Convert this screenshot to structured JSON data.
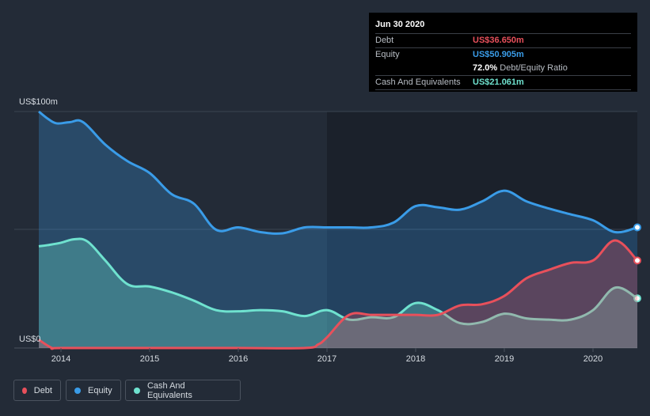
{
  "chart_data": {
    "type": "area",
    "y_axis": {
      "unit_label_top": "US$100m",
      "unit_label_bottom": "US$0",
      "ylim": [
        0,
        100
      ]
    },
    "x_ticks": [
      "2014",
      "2015",
      "2016",
      "2017",
      "2018",
      "2019",
      "2020"
    ],
    "xlim": [
      2013.75,
      2020.5
    ],
    "series": [
      {
        "name": "Equity",
        "color": "#3a9ce8",
        "points": [
          [
            2013.75,
            100
          ],
          [
            2013.85,
            97
          ],
          [
            2013.95,
            95
          ],
          [
            2014.1,
            95.5
          ],
          [
            2014.25,
            95.5
          ],
          [
            2014.5,
            86
          ],
          [
            2014.75,
            79
          ],
          [
            2015.0,
            74
          ],
          [
            2015.25,
            65
          ],
          [
            2015.5,
            61
          ],
          [
            2015.75,
            50
          ],
          [
            2016.0,
            51
          ],
          [
            2016.25,
            49
          ],
          [
            2016.5,
            48.5
          ],
          [
            2016.75,
            51
          ],
          [
            2017.0,
            51
          ],
          [
            2017.25,
            51
          ],
          [
            2017.5,
            51
          ],
          [
            2017.75,
            53
          ],
          [
            2018.0,
            60
          ],
          [
            2018.25,
            59.5
          ],
          [
            2018.5,
            58.5
          ],
          [
            2018.75,
            62
          ],
          [
            2019.0,
            66.5
          ],
          [
            2019.25,
            62
          ],
          [
            2019.5,
            59
          ],
          [
            2019.75,
            56.5
          ],
          [
            2020.0,
            54
          ],
          [
            2020.25,
            49
          ],
          [
            2020.5,
            51
          ]
        ]
      },
      {
        "name": "Cash And Equivalents",
        "color": "#6fe2cf",
        "points": [
          [
            2013.75,
            43
          ],
          [
            2013.85,
            43.5
          ],
          [
            2014.0,
            44.5
          ],
          [
            2014.15,
            46
          ],
          [
            2014.3,
            45
          ],
          [
            2014.5,
            37
          ],
          [
            2014.75,
            27
          ],
          [
            2015.0,
            26
          ],
          [
            2015.25,
            23.5
          ],
          [
            2015.5,
            20
          ],
          [
            2015.75,
            16
          ],
          [
            2016.0,
            15.5
          ],
          [
            2016.25,
            16
          ],
          [
            2016.5,
            15.5
          ],
          [
            2016.75,
            13.5
          ],
          [
            2017.0,
            16
          ],
          [
            2017.25,
            12
          ],
          [
            2017.5,
            13
          ],
          [
            2017.75,
            13
          ],
          [
            2018.0,
            19
          ],
          [
            2018.25,
            16
          ],
          [
            2018.5,
            10.5
          ],
          [
            2018.75,
            11
          ],
          [
            2019.0,
            14.5
          ],
          [
            2019.25,
            12.5
          ],
          [
            2019.5,
            12
          ],
          [
            2019.75,
            12
          ],
          [
            2020.0,
            16
          ],
          [
            2020.25,
            25.5
          ],
          [
            2020.5,
            21
          ]
        ]
      },
      {
        "name": "Debt",
        "color": "#e8505b",
        "points": [
          [
            2013.75,
            3.5
          ],
          [
            2013.9,
            0
          ],
          [
            2014.0,
            0
          ],
          [
            2015.0,
            0
          ],
          [
            2016.0,
            0
          ],
          [
            2016.75,
            0
          ],
          [
            2016.9,
            1.5
          ],
          [
            2017.0,
            4.5
          ],
          [
            2017.25,
            14
          ],
          [
            2017.5,
            14
          ],
          [
            2017.75,
            14
          ],
          [
            2018.0,
            14
          ],
          [
            2018.25,
            14
          ],
          [
            2018.5,
            18
          ],
          [
            2018.75,
            18.5
          ],
          [
            2019.0,
            22
          ],
          [
            2019.25,
            29.5
          ],
          [
            2019.5,
            33
          ],
          [
            2019.75,
            36
          ],
          [
            2020.0,
            37
          ],
          [
            2020.25,
            45.5
          ],
          [
            2020.5,
            37
          ]
        ]
      }
    ],
    "legend": [
      "Debt",
      "Equity",
      "Cash And Equivalents"
    ],
    "tooltip": {
      "date": "Jun 30 2020",
      "rows": [
        {
          "label": "Debt",
          "value": "US$36.650m",
          "color": "#e8505b"
        },
        {
          "label": "Equity",
          "value": "US$50.905m",
          "color": "#3a9ce8"
        },
        {
          "label": "",
          "value": "72.0%",
          "suffix": "Debt/Equity Ratio"
        },
        {
          "label": "Cash And Equivalents",
          "value": "US$21.061m",
          "color": "#6fe2cf"
        }
      ]
    }
  }
}
